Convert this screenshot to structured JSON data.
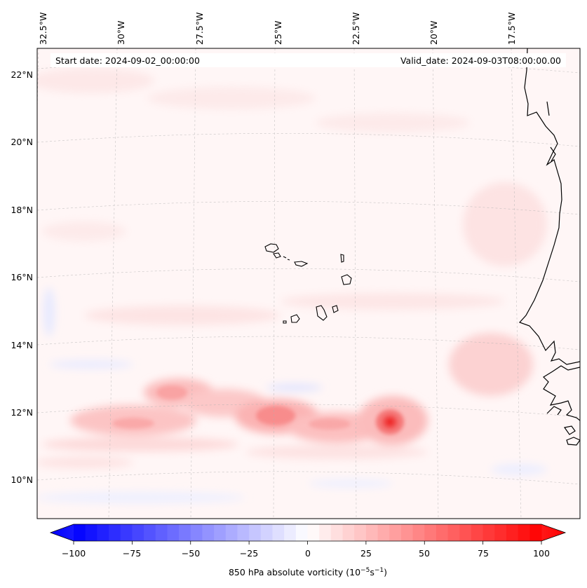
{
  "header": {
    "start_date": "Start date: 2024-09-02_00:00:00",
    "valid_date": "Valid_date: 2024-09-03T08:00:00.00"
  },
  "axes": {
    "lon_labels": [
      "32.5°W",
      "30°W",
      "27.5°W",
      "25°W",
      "22.5°W",
      "20°W",
      "17.5°W"
    ],
    "lat_labels": [
      "22°N",
      "20°N",
      "18°N",
      "16°N",
      "14°N",
      "12°N",
      "10°N"
    ]
  },
  "colorbar": {
    "tick_labels": [
      "−100",
      "−75",
      "−50",
      "−25",
      "0",
      "25",
      "50",
      "75",
      "100"
    ],
    "label_prefix": "850 hPa absolute vorticity (10",
    "label_exp1": "−5",
    "label_mid": "s",
    "label_exp2": "−1",
    "label_suffix": ")",
    "colors": {
      "negative": "#0000ff",
      "zero": "#ffffff",
      "positive": "#ff0000"
    }
  },
  "chart_data": {
    "type": "heatmap",
    "variable": "850 hPa absolute vorticity",
    "units": "10^-5 s^-1",
    "vlim": [
      -100,
      100
    ],
    "colormap": "bwr",
    "lon_range": [
      -33.0,
      -15.5
    ],
    "lat_range": [
      9.0,
      22.7
    ],
    "features": [
      {
        "lon": -20.9,
        "lat": 11.7,
        "value": 80
      },
      {
        "lon": -24.9,
        "lat": 11.85,
        "value": 42
      },
      {
        "lon": -27.4,
        "lat": 12.6,
        "value": 25
      },
      {
        "lon": -28.8,
        "lat": 11.8,
        "value": 20
      }
    ],
    "grid": true,
    "coastlines": true
  }
}
